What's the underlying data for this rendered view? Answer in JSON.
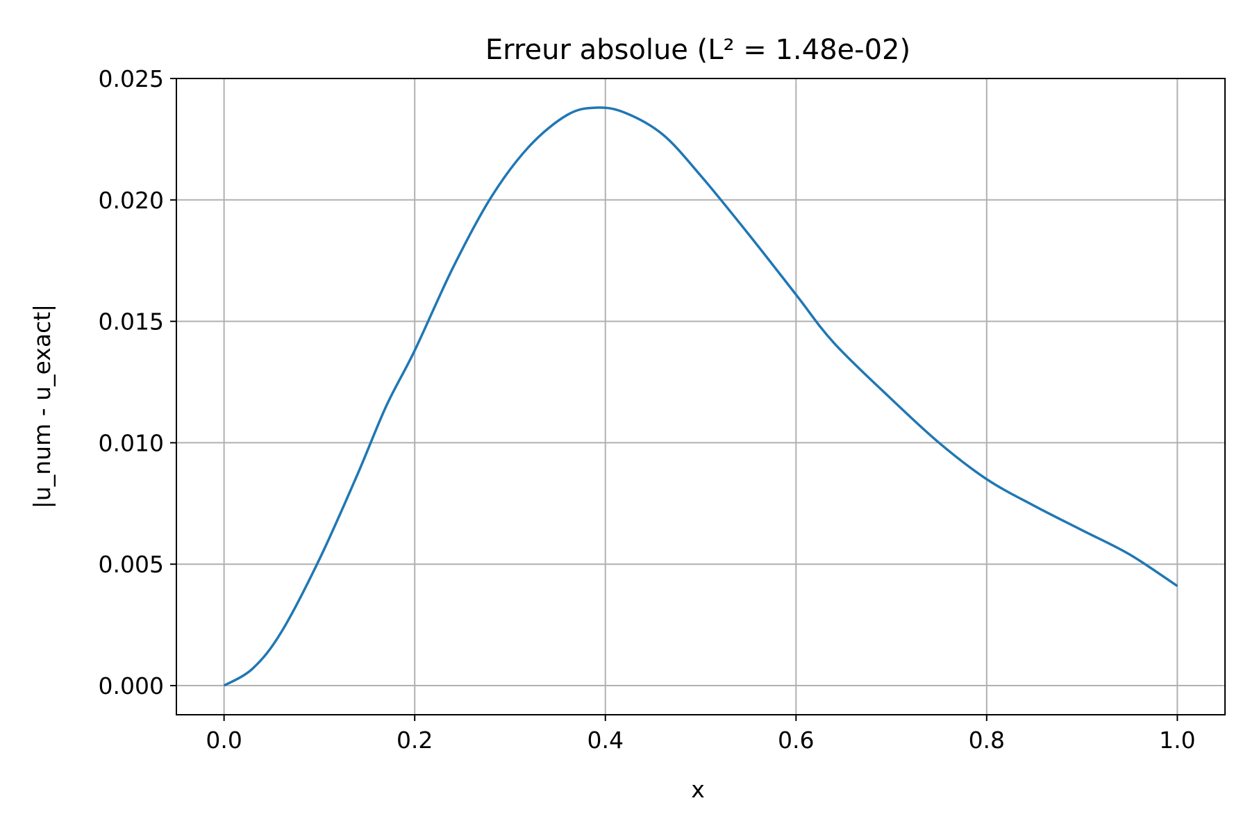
{
  "chart_data": {
    "type": "line",
    "title": "Erreur absolue (L² = 1.48e-02)",
    "xlabel": "x",
    "ylabel": "|u_num - u_exact|",
    "xlim": [
      -0.05,
      1.05
    ],
    "ylim": [
      -0.0012,
      0.025
    ],
    "grid": true,
    "x_ticks": [
      0.0,
      0.2,
      0.4,
      0.6,
      0.8,
      1.0
    ],
    "x_tick_labels": [
      "0.0",
      "0.2",
      "0.4",
      "0.6",
      "0.8",
      "1.0"
    ],
    "y_ticks": [
      0.0,
      0.005,
      0.01,
      0.015,
      0.02,
      0.025
    ],
    "y_tick_labels": [
      "0.000",
      "0.005",
      "0.010",
      "0.015",
      "0.020",
      "0.025"
    ],
    "line_color": "#1f77b4",
    "series": [
      {
        "x": [
          0.0,
          0.03,
          0.06,
          0.1,
          0.14,
          0.17,
          0.2,
          0.24,
          0.28,
          0.32,
          0.36,
          0.39,
          0.42,
          0.46,
          0.5,
          0.55,
          0.6,
          0.64,
          0.7,
          0.75,
          0.8,
          0.85,
          0.9,
          0.95,
          1.0
        ],
        "y": [
          0.0,
          0.0007,
          0.0022,
          0.0052,
          0.0087,
          0.0115,
          0.0138,
          0.0172,
          0.0201,
          0.0222,
          0.0235,
          0.0238,
          0.0236,
          0.0227,
          0.021,
          0.0186,
          0.0161,
          0.0141,
          0.0118,
          0.01,
          0.0085,
          0.0074,
          0.0064,
          0.0054,
          0.0041
        ]
      }
    ]
  }
}
